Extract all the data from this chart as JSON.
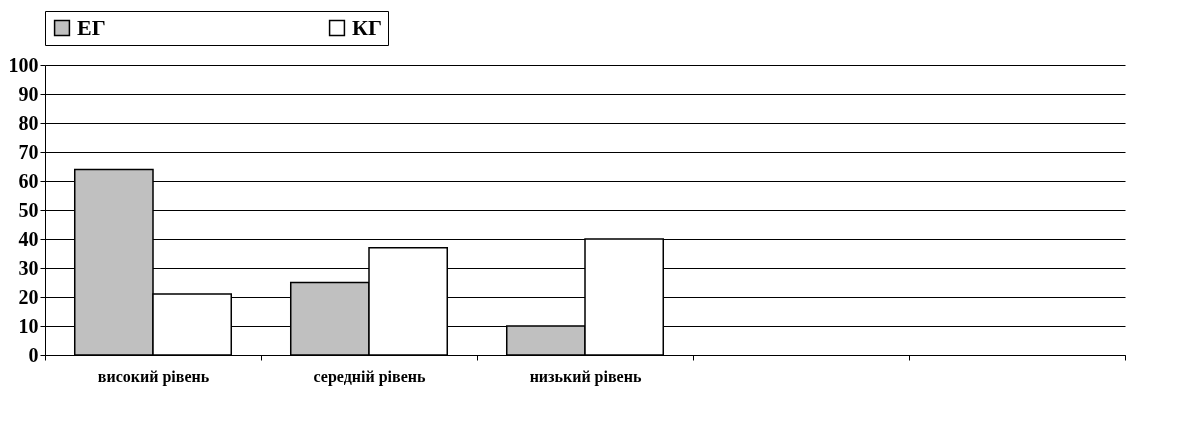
{
  "chart_data": {
    "type": "bar",
    "categories": [
      "високий рівень",
      "середній рівень",
      "низький рівень",
      null,
      null
    ],
    "series": [
      {
        "name": "ЕГ",
        "color": "#c0c0c0",
        "values": [
          64,
          25,
          10,
          null,
          null
        ]
      },
      {
        "name": "КГ",
        "color": "#ffffff",
        "values": [
          21,
          37,
          40,
          null,
          null
        ]
      }
    ],
    "ylim": [
      0,
      100
    ],
    "yticks": [
      0,
      10,
      20,
      30,
      40,
      50,
      60,
      70,
      80,
      90,
      100
    ],
    "grid": "y",
    "legend": "top"
  }
}
